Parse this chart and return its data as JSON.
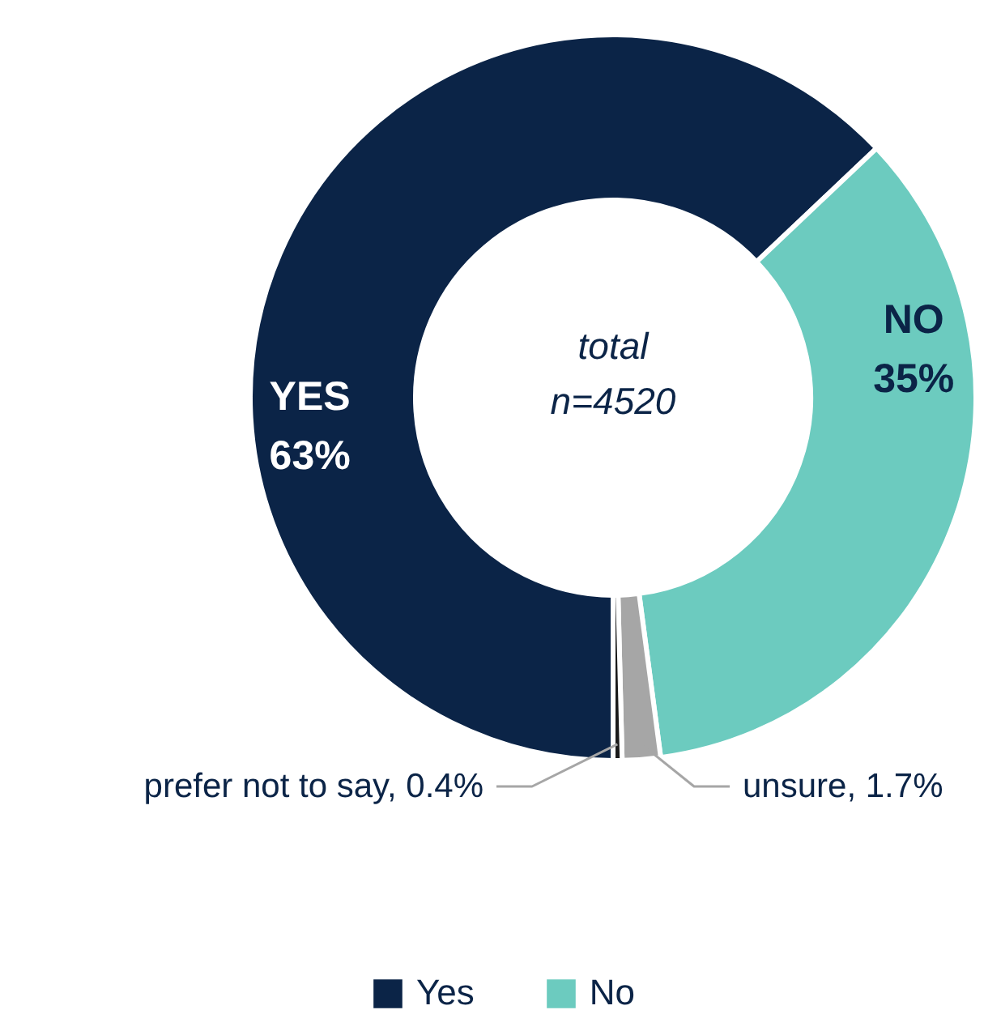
{
  "chart_data": {
    "type": "donut",
    "categories": [
      "Yes",
      "No",
      null,
      null
    ],
    "values": [
      63,
      35,
      1.7,
      0.4
    ],
    "colors": [
      "#0b2447",
      "#6ccbbf",
      "#a6a6a6",
      "#1a1a1a"
    ],
    "value_labels": [
      "YES\n63%",
      "NO\n35%",
      "unsure, 1.7%",
      "prefer not to say, 0.4%"
    ],
    "annotations": [
      "total\nn=4520"
    ],
    "legend": "bottom"
  }
}
